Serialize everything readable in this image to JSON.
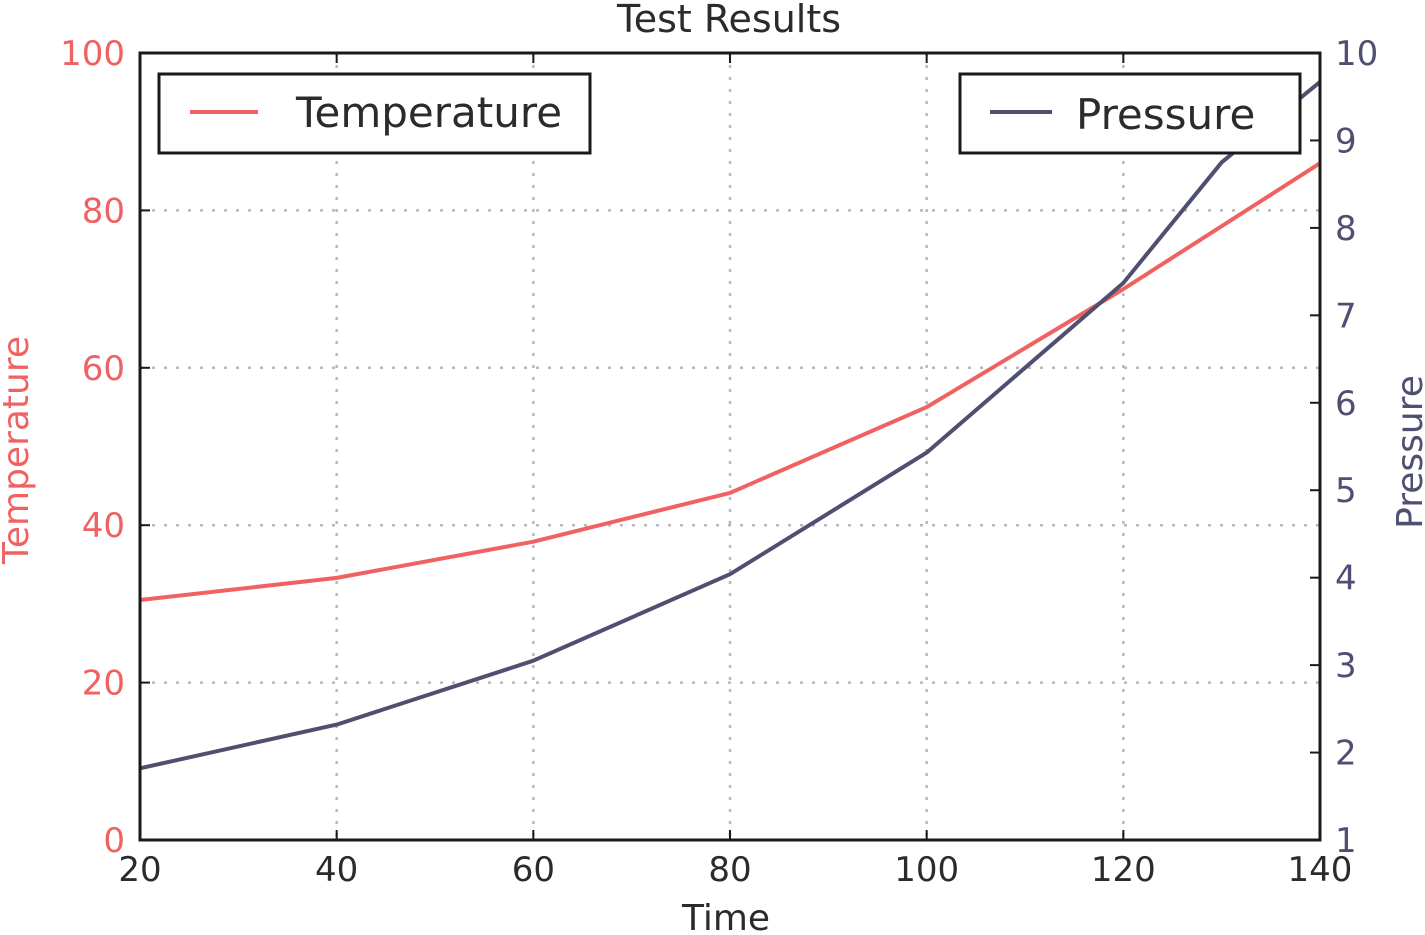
{
  "chart_data": {
    "type": "line",
    "title": "Test Results",
    "xlabel": "Time",
    "ylabel_left": "Temperature",
    "ylabel_right": "Pressure",
    "xlim": [
      20,
      140
    ],
    "ylim_left": [
      0,
      100
    ],
    "ylim_right": [
      1,
      10
    ],
    "x_ticks": [
      "20",
      "40",
      "60",
      "80",
      "100",
      "120",
      "140"
    ],
    "y_left_ticks": [
      "0",
      "20",
      "40",
      "60",
      "80",
      "100"
    ],
    "y_right_ticks": [
      "1",
      "2",
      "3",
      "4",
      "5",
      "6",
      "7",
      "8",
      "9",
      "10"
    ],
    "grid": true,
    "series": [
      {
        "name": "Temperature",
        "axis": "left",
        "color": "#f06262",
        "x": [
          20,
          40,
          60,
          80,
          100,
          120,
          140
        ],
        "values": [
          30.5,
          33.3,
          37.9,
          44.1,
          55.0,
          70.0,
          86.0
        ]
      },
      {
        "name": "Pressure",
        "axis": "right",
        "color": "#4f4f72",
        "x": [
          20,
          40,
          60,
          80,
          100,
          120,
          130,
          140
        ],
        "values": [
          1.82,
          2.32,
          3.05,
          4.04,
          5.43,
          7.37,
          8.75,
          9.67
        ]
      }
    ],
    "legends": [
      {
        "series": "Temperature",
        "placement": "upper-left"
      },
      {
        "series": "Pressure",
        "placement": "upper-right"
      }
    ]
  }
}
